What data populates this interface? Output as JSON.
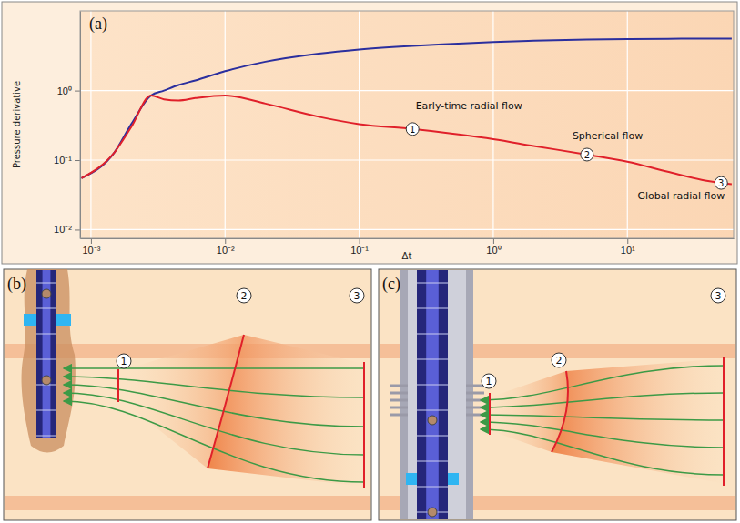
{
  "chart_data": {
    "type": "line",
    "panel_label": "(a)",
    "xlabel": "Δt",
    "ylabel": "Pressure derivative",
    "log": true,
    "grid": true,
    "xlim": [
      0.00083,
      62
    ],
    "ylim": [
      0.0075,
      14
    ],
    "xticks": [
      {
        "value": 0.001,
        "label": "10⁻³"
      },
      {
        "value": 0.01,
        "label": "10⁻²"
      },
      {
        "value": 0.1,
        "label": "10⁻¹"
      },
      {
        "value": 1,
        "label": "10⁰"
      },
      {
        "value": 10,
        "label": "10¹"
      }
    ],
    "yticks": [
      {
        "value": 0.01,
        "label": "10⁻²"
      },
      {
        "value": 0.1,
        "label": "10⁻¹"
      },
      {
        "value": 1,
        "label": "10⁰"
      }
    ],
    "x": [
      0.00085,
      0.0015,
      0.002,
      0.0028,
      0.0035,
      0.0045,
      0.006,
      0.01,
      0.02,
      0.05,
      0.1,
      0.25,
      0.5,
      1,
      2,
      5,
      10,
      20,
      40,
      60
    ],
    "series": [
      {
        "color": "#2b2f9e",
        "values": [
          0.055,
          0.13,
          0.33,
          0.85,
          1.0,
          1.2,
          1.4,
          1.9,
          2.6,
          3.4,
          3.9,
          4.4,
          4.7,
          5.0,
          5.2,
          5.4,
          5.5,
          5.55,
          5.6,
          5.6
        ]
      },
      {
        "color": "#e0202a",
        "values": [
          0.055,
          0.13,
          0.3,
          0.85,
          0.75,
          0.72,
          0.78,
          0.85,
          0.65,
          0.42,
          0.33,
          0.28,
          0.24,
          0.2,
          0.16,
          0.12,
          0.095,
          0.068,
          0.05,
          0.045
        ]
      }
    ],
    "annotations": [
      {
        "text": "Early-time radial flow",
        "label": "1",
        "x": 0.25,
        "y": 0.28
      },
      {
        "text": "Spherical flow",
        "label": "2",
        "x": 5,
        "y": 0.12
      },
      {
        "text": "Global radial flow",
        "label": "3",
        "x": 50,
        "y": 0.047
      }
    ]
  },
  "diagrams": [
    {
      "panel_label": "(b)",
      "markers": [
        "1",
        "2",
        "3"
      ]
    },
    {
      "panel_label": "(c)",
      "markers": [
        "1",
        "2",
        "3"
      ]
    }
  ]
}
